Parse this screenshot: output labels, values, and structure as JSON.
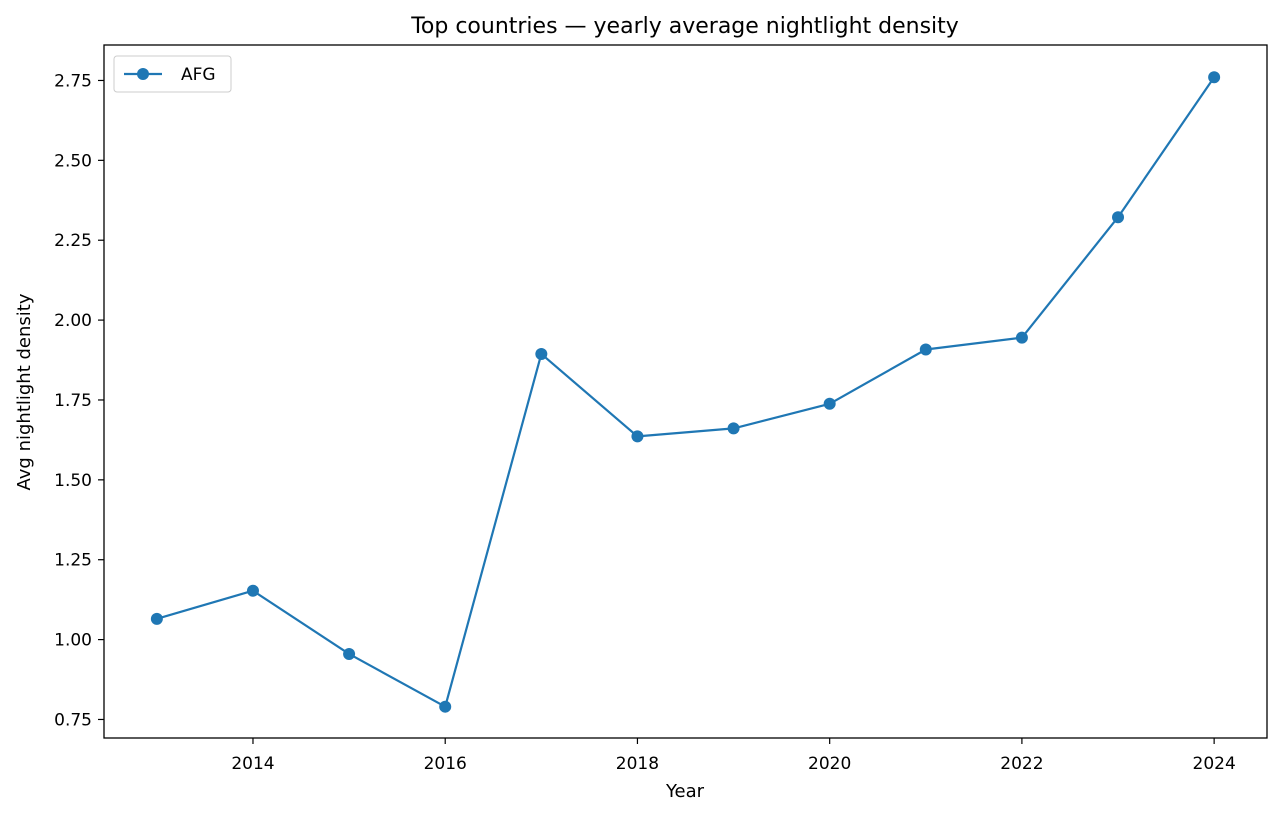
{
  "chart_data": {
    "type": "line",
    "title": "Top countries — yearly average nightlight density",
    "xlabel": "Year",
    "ylabel": "Avg nightlight density",
    "xlim": [
      2012.45,
      2024.55
    ],
    "ylim": [
      0.692,
      2.861
    ],
    "xticks": [
      2014,
      2016,
      2018,
      2020,
      2022,
      2024
    ],
    "xtick_labels": [
      "2014",
      "2016",
      "2018",
      "2020",
      "2022",
      "2024"
    ],
    "yticks": [
      0.75,
      1.0,
      1.25,
      1.5,
      1.75,
      2.0,
      2.25,
      2.5,
      2.75
    ],
    "ytick_labels": [
      "0.75",
      "1.00",
      "1.25",
      "1.50",
      "1.75",
      "2.00",
      "2.25",
      "2.50",
      "2.75"
    ],
    "grid": false,
    "legend_position": "top-left",
    "series": [
      {
        "name": "AFG",
        "color": "#1f77b4",
        "marker": "circle",
        "x": [
          2013,
          2014,
          2015,
          2016,
          2017,
          2018,
          2019,
          2020,
          2021,
          2022,
          2023,
          2024
        ],
        "y": [
          1.065,
          1.153,
          0.955,
          0.79,
          1.894,
          1.636,
          1.661,
          1.738,
          1.908,
          1.945,
          2.322,
          2.76
        ]
      }
    ]
  }
}
